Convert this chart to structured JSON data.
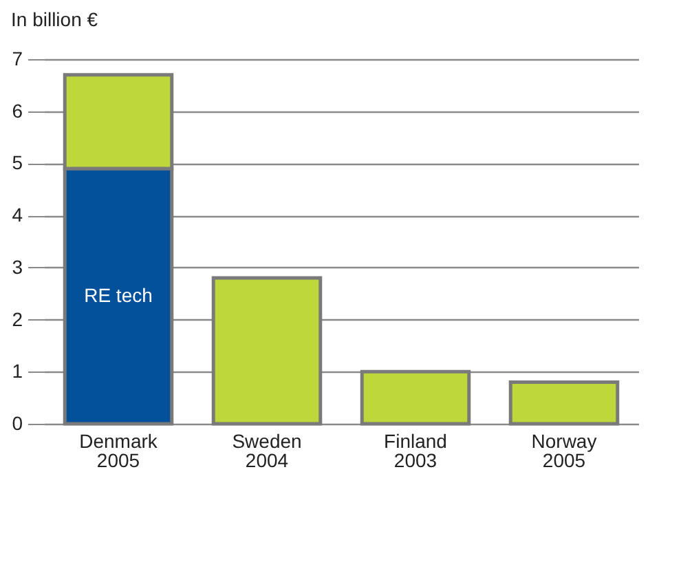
{
  "chart_data": {
    "type": "bar",
    "stacked": true,
    "ylabel": "In billion €",
    "categories": [
      "Denmark\n2005",
      "Sweden\n2004",
      "Finland\n2003",
      "Norway\n2005"
    ],
    "series": [
      {
        "name": "RE tech",
        "color": "#02519a",
        "values": [
          4.9,
          null,
          null,
          null
        ]
      },
      {
        "color": "#bed73a",
        "values": [
          1.8,
          2.8,
          1.0,
          0.8
        ]
      }
    ],
    "ylim": [
      0,
      7
    ],
    "yticks": [
      0,
      1,
      2,
      3,
      4,
      5,
      6,
      7
    ],
    "grid": "y",
    "legend": false
  }
}
